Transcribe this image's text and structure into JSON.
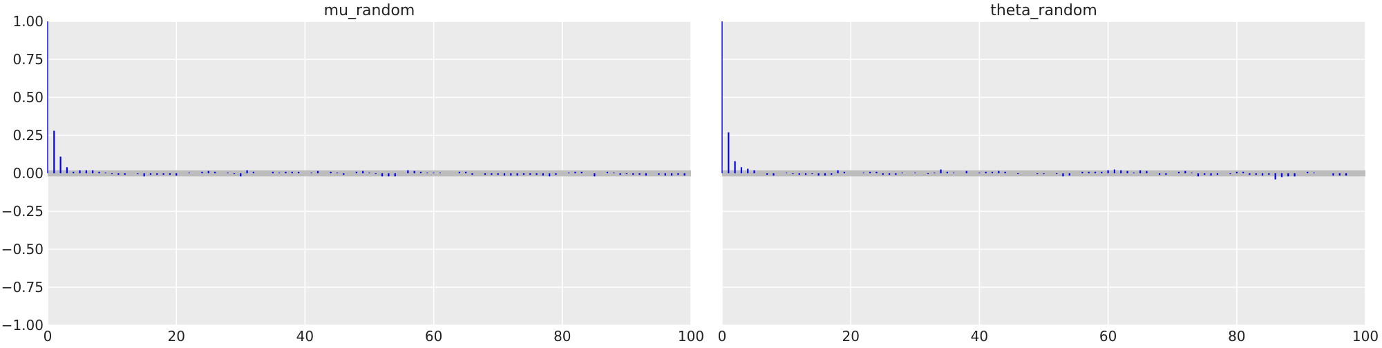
{
  "chart_data": [
    {
      "type": "bar",
      "title": "mu_random",
      "xlim": [
        0,
        100
      ],
      "ylim": [
        -1,
        1
      ],
      "x_ticks": [
        0,
        20,
        40,
        60,
        80,
        100
      ],
      "y_ticks": [
        -1.0,
        -0.75,
        -0.5,
        -0.25,
        0.0,
        0.25,
        0.5,
        0.75,
        1.0
      ],
      "x_tick_labels": [
        "0",
        "20",
        "40",
        "60",
        "80",
        "100"
      ],
      "y_tick_labels": [
        "−1.00",
        "−0.75",
        "−0.50",
        "−0.25",
        "0.00",
        "0.25",
        "0.50",
        "0.75",
        "1.00"
      ],
      "grid": true,
      "confidence_band": [
        -0.02,
        0.02
      ],
      "lags": [
        0,
        1,
        2,
        3,
        4,
        5,
        6,
        7,
        8,
        9,
        10,
        11,
        12,
        13,
        14,
        15,
        16,
        17,
        18,
        19,
        20,
        21,
        22,
        23,
        24,
        25,
        26,
        27,
        28,
        29,
        30,
        31,
        32,
        33,
        34,
        35,
        36,
        37,
        38,
        39,
        40,
        41,
        42,
        43,
        44,
        45,
        46,
        47,
        48,
        49,
        50,
        51,
        52,
        53,
        54,
        55,
        56,
        57,
        58,
        59,
        60,
        61,
        62,
        63,
        64,
        65,
        66,
        67,
        68,
        69,
        70,
        71,
        72,
        73,
        74,
        75,
        76,
        77,
        78,
        79,
        80,
        81,
        82,
        83,
        84,
        85,
        86,
        87,
        88,
        89,
        90,
        91,
        92,
        93,
        94,
        95,
        96,
        97,
        98,
        99
      ],
      "values": [
        1.0,
        0.28,
        0.11,
        0.04,
        0.01,
        0.02,
        0.02,
        0.02,
        0.01,
        0.005,
        -0.005,
        -0.01,
        -0.01,
        0.0,
        -0.005,
        -0.02,
        -0.01,
        -0.01,
        -0.01,
        -0.01,
        -0.015,
        0.0,
        0.005,
        0.0,
        0.01,
        0.015,
        0.01,
        0.0,
        0.005,
        -0.005,
        -0.02,
        0.02,
        0.01,
        0.0,
        0.0,
        0.01,
        0.005,
        0.01,
        0.01,
        0.01,
        0.0,
        0.005,
        0.015,
        0.0,
        0.01,
        0.005,
        -0.01,
        0.0,
        0.01,
        0.015,
        0.005,
        -0.005,
        -0.02,
        -0.02,
        -0.02,
        0.0,
        0.02,
        0.015,
        0.01,
        0.005,
        0.005,
        0.005,
        0.0,
        0.0,
        0.01,
        0.01,
        -0.01,
        0.0,
        -0.01,
        -0.01,
        -0.01,
        -0.015,
        -0.015,
        -0.015,
        -0.01,
        -0.01,
        -0.01,
        -0.015,
        -0.02,
        -0.01,
        0.0,
        0.005,
        0.01,
        0.01,
        0.0,
        -0.02,
        0.0,
        0.01,
        0.005,
        -0.01,
        -0.005,
        -0.01,
        -0.01,
        -0.015,
        0.0,
        -0.01,
        -0.015,
        -0.015,
        -0.01,
        -0.015
      ]
    },
    {
      "type": "bar",
      "title": "theta_random",
      "xlim": [
        0,
        100
      ],
      "ylim": [
        -1,
        1
      ],
      "x_ticks": [
        0,
        20,
        40,
        60,
        80,
        100
      ],
      "x_tick_labels": [
        "0",
        "20",
        "40",
        "60",
        "80",
        "100"
      ],
      "grid": true,
      "confidence_band": [
        -0.02,
        0.02
      ],
      "lags": [
        0,
        1,
        2,
        3,
        4,
        5,
        6,
        7,
        8,
        9,
        10,
        11,
        12,
        13,
        14,
        15,
        16,
        17,
        18,
        19,
        20,
        21,
        22,
        23,
        24,
        25,
        26,
        27,
        28,
        29,
        30,
        31,
        32,
        33,
        34,
        35,
        36,
        37,
        38,
        39,
        40,
        41,
        42,
        43,
        44,
        45,
        46,
        47,
        48,
        49,
        50,
        51,
        52,
        53,
        54,
        55,
        56,
        57,
        58,
        59,
        60,
        61,
        62,
        63,
        64,
        65,
        66,
        67,
        68,
        69,
        70,
        71,
        72,
        73,
        74,
        75,
        76,
        77,
        78,
        79,
        80,
        81,
        82,
        83,
        84,
        85,
        86,
        87,
        88,
        89,
        90,
        91,
        92,
        93,
        94,
        95,
        96,
        97,
        98,
        99
      ],
      "values": [
        1.0,
        0.27,
        0.08,
        0.04,
        0.03,
        0.02,
        0.0,
        -0.01,
        -0.015,
        0.0,
        0.005,
        -0.005,
        -0.01,
        -0.01,
        -0.005,
        -0.015,
        -0.015,
        -0.01,
        0.02,
        0.01,
        0.0,
        0.0,
        0.005,
        0.01,
        0.01,
        -0.01,
        -0.01,
        -0.01,
        0.005,
        0.0,
        0.005,
        0.0,
        -0.005,
        0.005,
        0.025,
        0.01,
        0.005,
        0.0,
        0.015,
        0.0,
        0.005,
        0.01,
        0.01,
        0.015,
        0.01,
        0.0,
        -0.005,
        0.0,
        0.0,
        -0.005,
        -0.005,
        0.0,
        -0.005,
        -0.02,
        -0.015,
        0.0,
        0.01,
        0.01,
        0.01,
        0.01,
        0.02,
        0.025,
        0.02,
        0.015,
        0.005,
        0.02,
        0.015,
        0.0,
        -0.01,
        -0.01,
        0.0,
        0.01,
        0.015,
        0.005,
        -0.02,
        -0.01,
        -0.015,
        -0.01,
        0.0,
        -0.005,
        0.01,
        0.01,
        -0.01,
        -0.01,
        -0.015,
        -0.01,
        -0.04,
        -0.025,
        -0.02,
        -0.02,
        0.0,
        0.01,
        0.005,
        0.0,
        0.0,
        -0.015,
        -0.015,
        -0.015,
        0.0,
        0.0
      ]
    }
  ]
}
